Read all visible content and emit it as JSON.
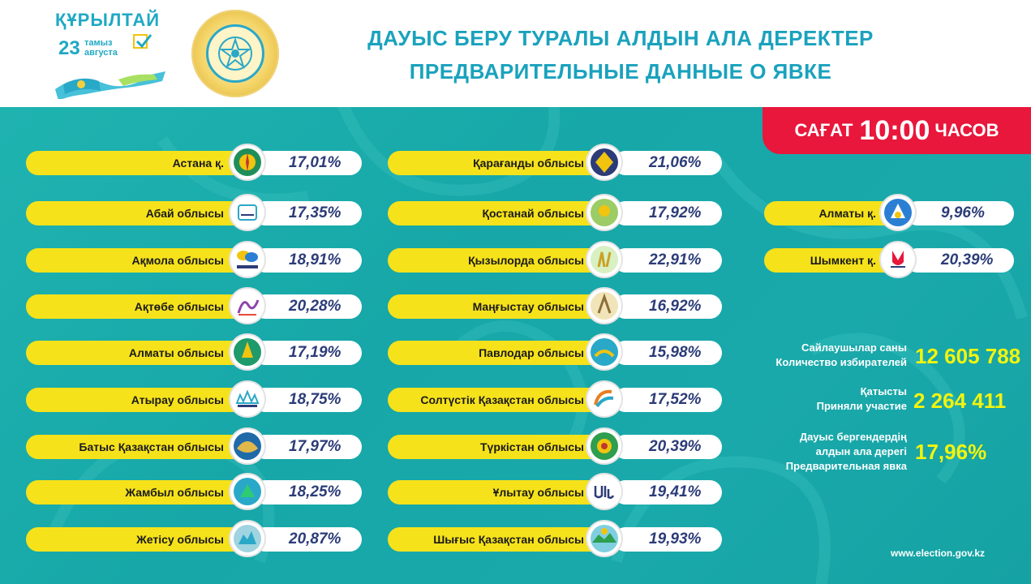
{
  "header": {
    "brand_title": "ҚҰРЫЛТАЙ",
    "brand_day": "23",
    "brand_month_kz": "тамыз",
    "brand_month_ru": "августа",
    "title_kz": "ДАУЫС БЕРУ ТУРАЛЫ АЛДЫН АЛА ДЕРЕКТЕР",
    "title_ru": "ПРЕДВАРИТЕЛЬНЫЕ ДАННЫЕ О ЯВКЕ"
  },
  "time": {
    "label_kz": "САҒАТ",
    "value": "10:00",
    "label_ru": "ЧАСОВ"
  },
  "column1": [
    {
      "name": "Астана қ.",
      "pct": "17,01%"
    },
    {
      "name": "Абай облысы",
      "pct": "17,35%"
    },
    {
      "name": "Ақмола облысы",
      "pct": "18,91%"
    },
    {
      "name": "Ақтөбе облысы",
      "pct": "20,28%"
    },
    {
      "name": "Алматы облысы",
      "pct": "17,19%"
    },
    {
      "name": "Атырау облысы",
      "pct": "18,75%"
    },
    {
      "name": "Батыс Қазақстан облысы",
      "pct": "17,97%"
    },
    {
      "name": "Жамбыл облысы",
      "pct": "18,25%"
    },
    {
      "name": "Жетісу облысы",
      "pct": "20,87%"
    }
  ],
  "column2": [
    {
      "name": "Қарағанды облысы",
      "pct": "21,06%"
    },
    {
      "name": "Қостанай облысы",
      "pct": "17,92%"
    },
    {
      "name": "Қызылорда облысы",
      "pct": "22,91%"
    },
    {
      "name": "Маңғыстау облысы",
      "pct": "16,92%"
    },
    {
      "name": "Павлодар облысы",
      "pct": "15,98%"
    },
    {
      "name": "Солтүстік Қазақстан облысы",
      "pct": "17,52%"
    },
    {
      "name": "Түркістан облысы",
      "pct": "20,39%"
    },
    {
      "name": "Ұлытау облысы",
      "pct": "19,41%"
    },
    {
      "name": "Шығыс Қазақстан облысы",
      "pct": "19,93%"
    }
  ],
  "column3": [
    {
      "name": "Алматы қ.",
      "pct": "9,96%"
    },
    {
      "name": "Шымкент қ.",
      "pct": "20,39%"
    }
  ],
  "stats": {
    "voters_kz": "Сайлаушылар саны",
    "voters_ru": "Количество избирателей",
    "voters_value": "12 605 788",
    "participated_kz": "Қатысты",
    "participated_ru": "Приняли участие",
    "participated_value": "2 264 411",
    "turnout_kz1": "Дауыс бергендердің",
    "turnout_kz2": "алдын ала дерегі",
    "turnout_ru": "Предварительная явка",
    "turnout_value": "17,96%"
  },
  "footer": "www.election.gov.kz",
  "colors": {
    "teal": "#17a7a8",
    "yellow_bar": "#f6e21a",
    "red_badge": "#e8173b",
    "title_blue": "#1aa2bd",
    "pct_navy": "#2c3c78",
    "stat_yellow": "#f2f40e"
  }
}
